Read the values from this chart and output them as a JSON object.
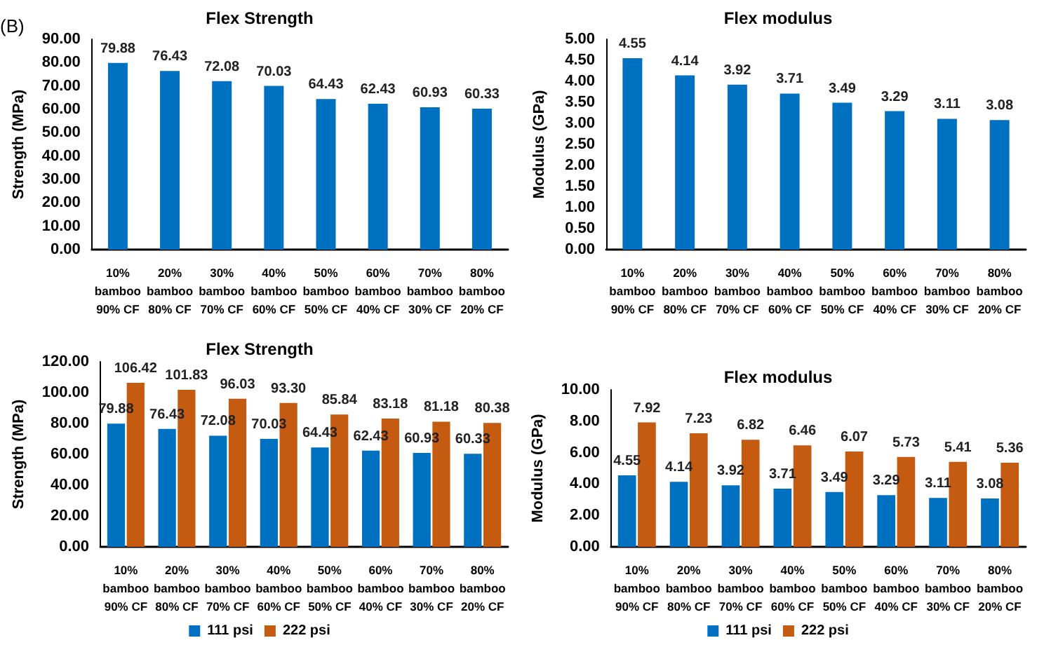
{
  "chart_data": [
    {
      "type": "bar",
      "title": "Flex Strength",
      "ylabel": "Strength (MPa)",
      "annotations": [
        "(B)"
      ],
      "categories": [
        "10%\nbamboo\n90% CF",
        "20%\nbamboo\n80% CF",
        "30%\nbamboo\n70% CF",
        "40%\nbamboo\n60% CF",
        "50%\nbamboo\n50% CF",
        "60%\nbamboo\n40% CF",
        "70%\nbamboo\n30% CF",
        "80%\nbamboo\n20% CF"
      ],
      "series": [
        {
          "color": "#0070c0",
          "values": [
            79.88,
            76.43,
            72.08,
            70.03,
            64.43,
            62.43,
            60.93,
            60.33
          ],
          "value_labels": [
            "79.88",
            "76.43",
            "72.08",
            "70.03",
            "64.43",
            "62.43",
            "60.93",
            "60.33"
          ]
        }
      ],
      "ylim": [
        0,
        90
      ],
      "yticks": [
        {
          "value": 0,
          "label": "0.00"
        },
        {
          "value": 10,
          "label": "10.00"
        },
        {
          "value": 20,
          "label": "20.00"
        },
        {
          "value": 30,
          "label": "30.00"
        },
        {
          "value": 40,
          "label": "40.00"
        },
        {
          "value": 50,
          "label": "50.00"
        },
        {
          "value": 60,
          "label": "60.00"
        },
        {
          "value": 70,
          "label": "70.00"
        },
        {
          "value": 80,
          "label": "80.00"
        },
        {
          "value": 90,
          "label": "90.00"
        }
      ],
      "grid": false,
      "legend": false
    },
    {
      "type": "bar",
      "title": "Flex modulus",
      "ylabel": "Modulus (GPa)",
      "categories": [
        "10%\nbamboo\n90% CF",
        "20%\nbamboo\n80% CF",
        "30%\nbamboo\n70% CF",
        "40%\nbamboo\n60% CF",
        "50%\nbamboo\n50% CF",
        "60%\nbamboo\n40% CF",
        "70%\nbamboo\n30% CF",
        "80%\nbamboo\n20% CF"
      ],
      "series": [
        {
          "color": "#0070c0",
          "values": [
            4.55,
            4.14,
            3.92,
            3.71,
            3.49,
            3.29,
            3.11,
            3.08
          ],
          "value_labels": [
            "4.55",
            "4.14",
            "3.92",
            "3.71",
            "3.49",
            "3.29",
            "3.11",
            "3.08"
          ]
        }
      ],
      "ylim": [
        0,
        5
      ],
      "yticks": [
        {
          "value": 0,
          "label": "0.00"
        },
        {
          "value": 0.5,
          "label": "0.50"
        },
        {
          "value": 1,
          "label": "1.00"
        },
        {
          "value": 1.5,
          "label": "1.50"
        },
        {
          "value": 2,
          "label": "2.00"
        },
        {
          "value": 2.5,
          "label": "2.50"
        },
        {
          "value": 3,
          "label": "3.00"
        },
        {
          "value": 3.5,
          "label": "3.50"
        },
        {
          "value": 4,
          "label": "4.00"
        },
        {
          "value": 4.5,
          "label": "4.50"
        },
        {
          "value": 5,
          "label": "5.00"
        }
      ],
      "grid": false,
      "legend": false
    },
    {
      "type": "bar",
      "title": "Flex Strength",
      "ylabel": "Strength (MPa)",
      "categories": [
        "10%\nbamboo\n90% CF",
        "20%\nbamboo\n80% CF",
        "30%\nbamboo\n70% CF",
        "40%\nbamboo\n60% CF",
        "50%\nbamboo\n50% CF",
        "60%\nbamboo\n40% CF",
        "70%\nbamboo\n30% CF",
        "80%\nbamboo\n20% CF"
      ],
      "series": [
        {
          "name": "111 psi",
          "color": "#0070c0",
          "values": [
            79.88,
            76.43,
            72.08,
            70.03,
            64.43,
            62.43,
            60.93,
            60.33
          ],
          "value_labels": [
            "79.88",
            "76.43",
            "72.08",
            "70.03",
            "64.43",
            "62.43",
            "60.93",
            "60.33"
          ]
        },
        {
          "name": "222 psi",
          "color": "#c55a11",
          "values": [
            106.42,
            101.83,
            96.03,
            93.3,
            85.84,
            83.18,
            81.18,
            80.38
          ],
          "value_labels": [
            "106.42",
            "101.83",
            "96.03",
            "93.30",
            "85.84",
            "83.18",
            "81.18",
            "80.38"
          ]
        }
      ],
      "ylim": [
        0,
        120
      ],
      "yticks": [
        {
          "value": 0,
          "label": "0.00"
        },
        {
          "value": 20,
          "label": "20.00"
        },
        {
          "value": 40,
          "label": "40.00"
        },
        {
          "value": 60,
          "label": "60.00"
        },
        {
          "value": 80,
          "label": "80.00"
        },
        {
          "value": 100,
          "label": "100.00"
        },
        {
          "value": 120,
          "label": "120.00"
        }
      ],
      "grid": false,
      "legend": "bottom"
    },
    {
      "type": "bar",
      "title": "Flex modulus",
      "ylabel": "Modulus (GPa)",
      "categories": [
        "10%\nbamboo\n90% CF",
        "20%\nbamboo\n80% CF",
        "30%\nbamboo\n70% CF",
        "40%\nbamboo\n60% CF",
        "50%\nbamboo\n50% CF",
        "60%\nbamboo\n40% CF",
        "70%\nbamboo\n30% CF",
        "80%\nbamboo\n20% CF"
      ],
      "series": [
        {
          "name": "111 psi",
          "color": "#0070c0",
          "values": [
            4.55,
            4.14,
            3.92,
            3.71,
            3.49,
            3.29,
            3.11,
            3.08
          ],
          "value_labels": [
            "4.55",
            "4.14",
            "3.92",
            "3.71",
            "3.49",
            "3.29",
            "3.11",
            "3.08"
          ]
        },
        {
          "name": "222 psi",
          "color": "#c55a11",
          "values": [
            7.92,
            7.23,
            6.82,
            6.46,
            6.07,
            5.73,
            5.41,
            5.36
          ],
          "value_labels": [
            "7.92",
            "7.23",
            "6.82",
            "6.46",
            "6.07",
            "5.73",
            "5.41",
            "5.36"
          ]
        }
      ],
      "ylim": [
        0,
        10
      ],
      "yticks": [
        {
          "value": 0,
          "label": "0.00"
        },
        {
          "value": 2,
          "label": "2.00"
        },
        {
          "value": 4,
          "label": "4.00"
        },
        {
          "value": 6,
          "label": "6.00"
        },
        {
          "value": 8,
          "label": "8.00"
        },
        {
          "value": 10,
          "label": "10.00"
        }
      ],
      "grid": false,
      "legend": "bottom"
    }
  ]
}
